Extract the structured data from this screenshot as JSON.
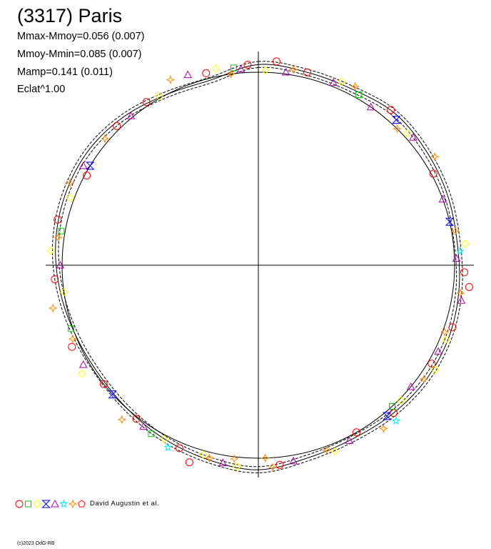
{
  "header": {
    "title": "(3317) Paris",
    "stats": [
      "Mmax-Mmoy=0.056 (0.007)",
      "Mmoy-Mmin=0.085 (0.007)",
      "Mamp=0.141 (0.011)",
      "Eclat^1.00"
    ]
  },
  "legend": {
    "author": "David Augustin et al.",
    "symbols": [
      {
        "shape": "circle",
        "color": "#ff0000"
      },
      {
        "shape": "square",
        "color": "#00cc00"
      },
      {
        "shape": "diamond",
        "color": "#ffff00"
      },
      {
        "shape": "bowtie",
        "color": "#0000ff"
      },
      {
        "shape": "triangle",
        "color": "#aa00aa"
      },
      {
        "shape": "star",
        "color": "#00e5ff"
      },
      {
        "shape": "cross-star",
        "color": "#ff8800"
      },
      {
        "shape": "pentagon",
        "color": "#ff0000"
      }
    ]
  },
  "footer": {
    "copyright": "(c)2023 OdG-RB"
  },
  "chart_data": {
    "type": "polar-lightcurve",
    "title": "(3317) Paris",
    "xlabel": "",
    "ylabel": "",
    "grid": false,
    "curve_radius": [
      1.04,
      1.03,
      1.03,
      1.05,
      1.04,
      1.03,
      1.02,
      1.03,
      1.04,
      1.04,
      1.03,
      1.02,
      1.03,
      1.06,
      1.04,
      1.02,
      1.0,
      0.99,
      1.0,
      1.02,
      1.04,
      1.05,
      1.05,
      1.03,
      1.0,
      0.99
    ],
    "series": [
      {
        "symbol": "circle",
        "color": "#ff0000",
        "points": [
          [
            5,
            1.06
          ],
          [
            14,
            1.03
          ],
          [
            40,
            1.05
          ],
          [
            62,
            1.01
          ],
          [
            92,
            1.05
          ],
          [
            120,
            1.02
          ],
          [
            150,
            1.0
          ],
          [
            174,
            1.04
          ],
          [
            203,
            1.03
          ],
          [
            232,
            1.0
          ],
          [
            266,
            1.04
          ],
          [
            298,
            0.99
          ],
          [
            326,
            1.02
          ],
          [
            357,
            1.04
          ],
          [
            96,
            1.08
          ],
          [
            108,
            1.04
          ],
          [
            138,
            1.03
          ],
          [
            199,
            1.08
          ],
          [
            218,
            1.01
          ],
          [
            246,
            1.04
          ],
          [
            283,
            1.05
          ],
          [
            315,
            1.02
          ],
          [
            345,
            1.03
          ]
        ]
      },
      {
        "symbol": "square",
        "color": "#00cc00",
        "points": [
          [
            30,
            1.02
          ],
          [
            212,
            1.03
          ],
          [
            251,
            1.01
          ],
          [
            353,
            1.03
          ],
          [
            137,
            1.0
          ],
          [
            280,
            1.02
          ]
        ]
      },
      {
        "symbol": "diamond",
        "color": "#ffff00",
        "points": [
          [
            2,
            1.01
          ],
          [
            24,
            1.04
          ],
          [
            48,
            1.02
          ],
          [
            84,
            1.06
          ],
          [
            112,
            1.03
          ],
          [
            134,
            1.01
          ],
          [
            158,
            1.04
          ],
          [
            186,
            1.05
          ],
          [
            208,
            1.02
          ],
          [
            238,
            1.06
          ],
          [
            262,
            1.0
          ],
          [
            290,
            1.02
          ],
          [
            330,
            1.01
          ],
          [
            348,
            1.04
          ],
          [
            121,
            1.05
          ],
          [
            196,
            1.02
          ],
          [
            274,
            1.06
          ]
        ]
      },
      {
        "symbol": "bowtie",
        "color": "#0000ff",
        "points": [
          [
            140,
            1.02
          ],
          [
            301,
            1.0
          ],
          [
            77,
            1.0
          ],
          [
            43,
            1.03
          ],
          [
            228,
            1.0
          ]
        ]
      },
      {
        "symbol": "triangle",
        "color": "#aa00aa",
        "points": [
          [
            8,
            1.01
          ],
          [
            22,
            1.02
          ],
          [
            35,
            1.0
          ],
          [
            50,
            1.03
          ],
          [
            70,
            1.0
          ],
          [
            88,
            1.01
          ],
          [
            100,
            1.05
          ],
          [
            116,
            1.02
          ],
          [
            129,
            1.0
          ],
          [
            153,
            1.02
          ],
          [
            170,
            1.03
          ],
          [
            190,
            1.04
          ],
          [
            215,
            1.02
          ],
          [
            240,
            1.03
          ],
          [
            270,
            1.01
          ],
          [
            300,
            1.03
          ],
          [
            320,
            1.01
          ],
          [
            340,
            1.05
          ],
          [
            355,
            1.02
          ]
        ]
      },
      {
        "symbol": "star",
        "color": "#00e5ff",
        "points": [
          [
            139,
            1.07
          ],
          [
            206,
            1.05
          ],
          [
            86,
            1.03
          ]
        ]
      },
      {
        "symbol": "cross-star",
        "color": "#ff8800",
        "points": [
          [
            10,
            1.03
          ],
          [
            28,
            1.05
          ],
          [
            45,
            1.0
          ],
          [
            58,
            1.06
          ],
          [
            80,
            1.02
          ],
          [
            98,
            1.04
          ],
          [
            110,
            1.01
          ],
          [
            125,
            1.03
          ],
          [
            143,
            1.06
          ],
          [
            160,
            1.02
          ],
          [
            178,
            1.0
          ],
          [
            194,
            1.03
          ],
          [
            221,
            1.06
          ],
          [
            248,
            1.02
          ],
          [
            258,
            1.07
          ],
          [
            278,
            1.03
          ],
          [
            294,
            1.05
          ],
          [
            310,
            1.02
          ],
          [
            335,
            1.06
          ],
          [
            352,
            1.0
          ],
          [
            176,
            1.05
          ],
          [
            187,
            1.01
          ]
        ]
      }
    ]
  }
}
